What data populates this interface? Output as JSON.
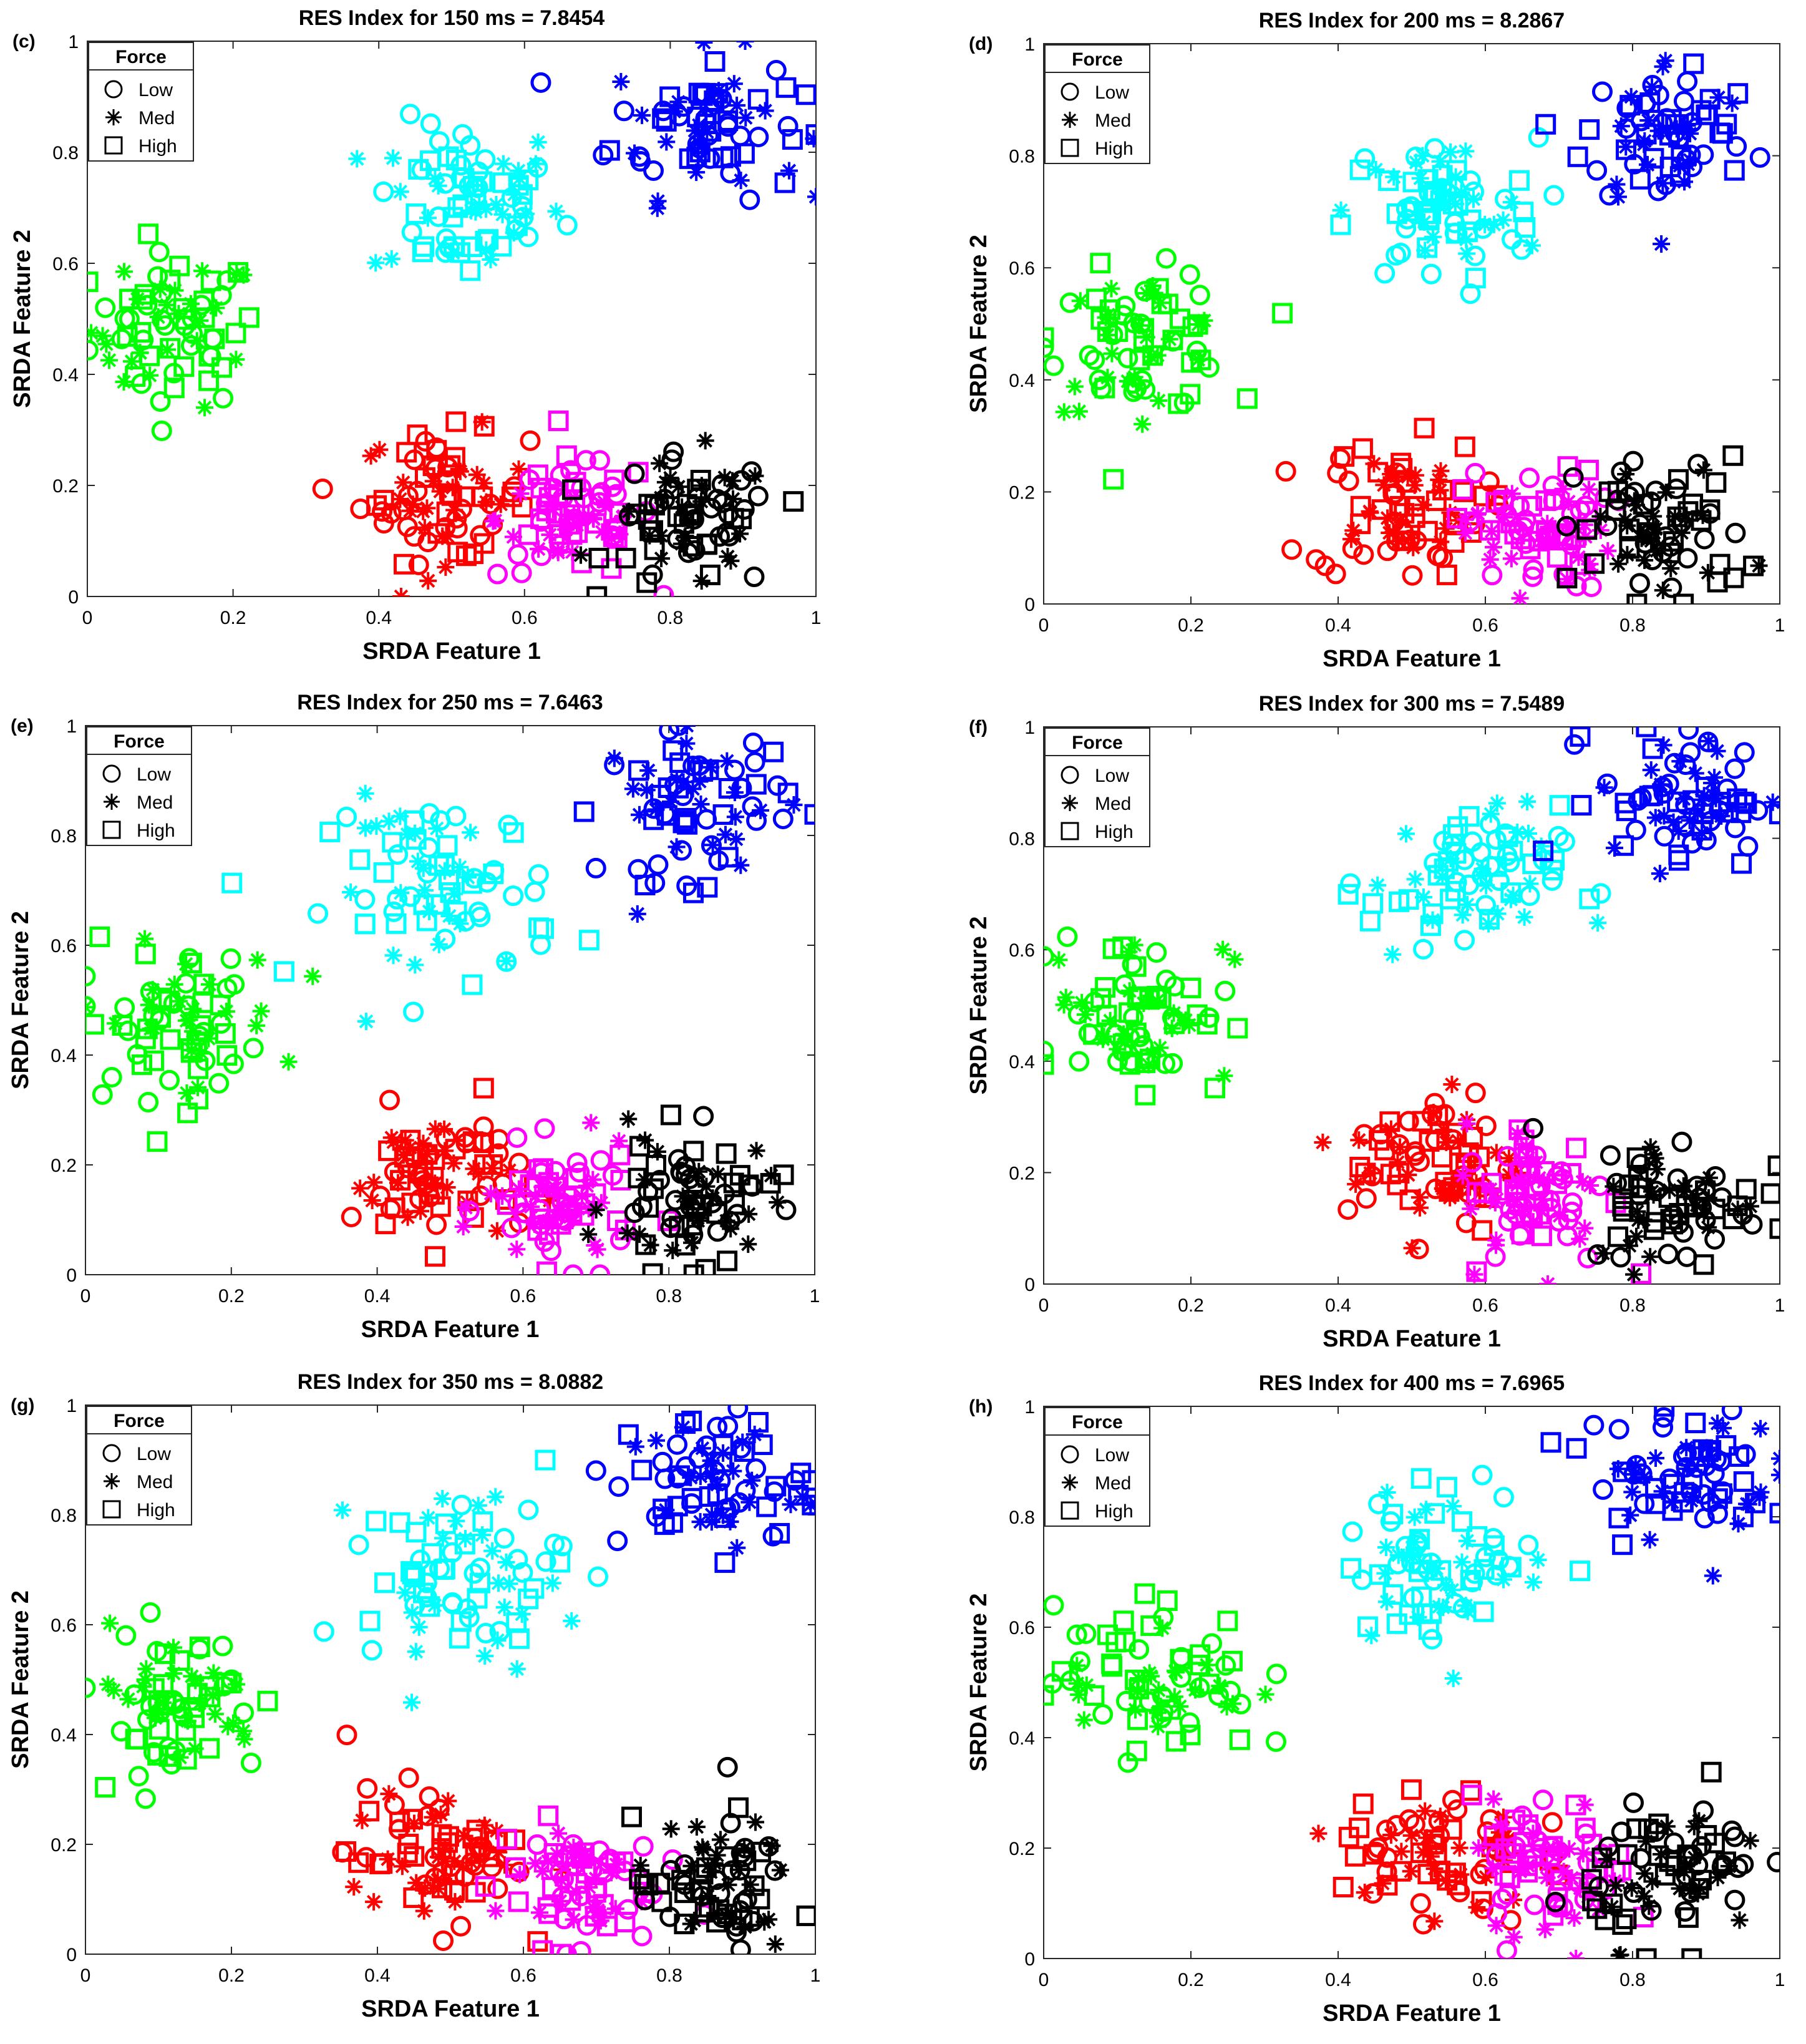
{
  "figure": {
    "legend_title": "Force",
    "legend_placement": "top-left"
  },
  "legend_entries": [
    {
      "label": "Low",
      "marker": "circle"
    },
    {
      "label": "Med",
      "marker": "asterisk"
    },
    {
      "label": "High",
      "marker": "square"
    }
  ],
  "colors": {
    "green": "#00ff00",
    "cyan": "#00ffff",
    "blue": "#0000ff",
    "red": "#ff0000",
    "magenta": "#ff00ff",
    "black": "#000000"
  },
  "chart_data": [
    {
      "type": "scatter",
      "panel": "(c)",
      "title": "RES Index for 150 ms =  7.8454",
      "xlabel": "SRDA Feature 1",
      "ylabel": "SRDA Feature 2",
      "xlim": [
        0,
        1
      ],
      "ylim": [
        0,
        1
      ],
      "xticks": [
        "0",
        "0.2",
        "0.4",
        "0.6",
        "0.8",
        "1"
      ],
      "yticks": [
        "0",
        "0.2",
        "0.4",
        "0.6",
        "0.8",
        "1"
      ],
      "clusters": [
        {
          "color": "green",
          "cx": 0.12,
          "cy": 0.48,
          "sx": 0.15,
          "sy": 0.18
        },
        {
          "color": "cyan",
          "cx": 0.52,
          "cy": 0.71,
          "sx": 0.17,
          "sy": 0.19
        },
        {
          "color": "blue",
          "cx": 0.85,
          "cy": 0.85,
          "sx": 0.17,
          "sy": 0.17
        },
        {
          "color": "red",
          "cx": 0.49,
          "cy": 0.18,
          "sx": 0.15,
          "sy": 0.15
        },
        {
          "color": "magenta",
          "cx": 0.67,
          "cy": 0.14,
          "sx": 0.14,
          "sy": 0.14
        },
        {
          "color": "black",
          "cx": 0.83,
          "cy": 0.13,
          "sx": 0.15,
          "sy": 0.16
        }
      ]
    },
    {
      "type": "scatter",
      "panel": "(d)",
      "title": "RES Index for 200 ms =  8.2867",
      "xlabel": "SRDA Feature 1",
      "ylabel": "SRDA Feature 2",
      "xlim": [
        0,
        1
      ],
      "ylim": [
        0,
        1
      ],
      "xticks": [
        "0",
        "0.2",
        "0.4",
        "0.6",
        "0.8",
        "1"
      ],
      "yticks": [
        "0",
        "0.2",
        "0.4",
        "0.6",
        "0.8",
        "1"
      ],
      "clusters": [
        {
          "color": "green",
          "cx": 0.13,
          "cy": 0.47,
          "sx": 0.16,
          "sy": 0.16
        },
        {
          "color": "cyan",
          "cx": 0.54,
          "cy": 0.7,
          "sx": 0.17,
          "sy": 0.17
        },
        {
          "color": "blue",
          "cx": 0.85,
          "cy": 0.84,
          "sx": 0.15,
          "sy": 0.18
        },
        {
          "color": "red",
          "cx": 0.48,
          "cy": 0.17,
          "sx": 0.15,
          "sy": 0.16
        },
        {
          "color": "magenta",
          "cx": 0.67,
          "cy": 0.13,
          "sx": 0.13,
          "sy": 0.14
        },
        {
          "color": "black",
          "cx": 0.84,
          "cy": 0.13,
          "sx": 0.15,
          "sy": 0.17
        }
      ]
    },
    {
      "type": "scatter",
      "panel": "(e)",
      "title": "RES Index for 250 ms =  7.6463",
      "xlabel": "SRDA Feature 1",
      "ylabel": "SRDA Feature 2",
      "xlim": [
        0,
        1
      ],
      "ylim": [
        0,
        1
      ],
      "xticks": [
        "0",
        "0.2",
        "0.4",
        "0.6",
        "0.8",
        "1"
      ],
      "yticks": [
        "0",
        "0.2",
        "0.4",
        "0.6",
        "0.8",
        "1"
      ],
      "clusters": [
        {
          "color": "green",
          "cx": 0.13,
          "cy": 0.46,
          "sx": 0.18,
          "sy": 0.18
        },
        {
          "color": "cyan",
          "cx": 0.49,
          "cy": 0.7,
          "sx": 0.2,
          "sy": 0.22
        },
        {
          "color": "blue",
          "cx": 0.84,
          "cy": 0.86,
          "sx": 0.17,
          "sy": 0.18
        },
        {
          "color": "red",
          "cx": 0.48,
          "cy": 0.18,
          "sx": 0.15,
          "sy": 0.16
        },
        {
          "color": "magenta",
          "cx": 0.65,
          "cy": 0.12,
          "sx": 0.13,
          "sy": 0.14
        },
        {
          "color": "black",
          "cx": 0.83,
          "cy": 0.13,
          "sx": 0.15,
          "sy": 0.16
        }
      ]
    },
    {
      "type": "scatter",
      "panel": "(f)",
      "title": "RES Index for 300 ms =  7.5489",
      "xlabel": "SRDA Feature 1",
      "ylabel": "SRDA Feature 2",
      "xlim": [
        0,
        1
      ],
      "ylim": [
        0,
        1
      ],
      "xticks": [
        "0",
        "0.2",
        "0.4",
        "0.6",
        "0.8",
        "1"
      ],
      "yticks": [
        "0",
        "0.2",
        "0.4",
        "0.6",
        "0.8",
        "1"
      ],
      "clusters": [
        {
          "color": "green",
          "cx": 0.13,
          "cy": 0.5,
          "sx": 0.16,
          "sy": 0.18
        },
        {
          "color": "cyan",
          "cx": 0.57,
          "cy": 0.72,
          "sx": 0.17,
          "sy": 0.18
        },
        {
          "color": "blue",
          "cx": 0.87,
          "cy": 0.87,
          "sx": 0.15,
          "sy": 0.16
        },
        {
          "color": "red",
          "cx": 0.53,
          "cy": 0.22,
          "sx": 0.15,
          "sy": 0.17
        },
        {
          "color": "magenta",
          "cx": 0.67,
          "cy": 0.16,
          "sx": 0.13,
          "sy": 0.17
        },
        {
          "color": "black",
          "cx": 0.86,
          "cy": 0.15,
          "sx": 0.15,
          "sy": 0.16
        }
      ]
    },
    {
      "type": "scatter",
      "panel": "(g)",
      "title": "RES Index for 350 ms =  8.0882",
      "xlabel": "SRDA Feature 1",
      "ylabel": "SRDA Feature 2",
      "xlim": [
        0,
        1
      ],
      "ylim": [
        0,
        1
      ],
      "xticks": [
        "0",
        "0.2",
        "0.4",
        "0.6",
        "0.8",
        "1"
      ],
      "yticks": [
        "0",
        "0.2",
        "0.4",
        "0.6",
        "0.8",
        "1"
      ],
      "clusters": [
        {
          "color": "green",
          "cx": 0.12,
          "cy": 0.46,
          "sx": 0.16,
          "sy": 0.17
        },
        {
          "color": "cyan",
          "cx": 0.52,
          "cy": 0.69,
          "sx": 0.18,
          "sy": 0.2
        },
        {
          "color": "blue",
          "cx": 0.86,
          "cy": 0.86,
          "sx": 0.17,
          "sy": 0.17
        },
        {
          "color": "red",
          "cx": 0.48,
          "cy": 0.18,
          "sx": 0.16,
          "sy": 0.16
        },
        {
          "color": "magenta",
          "cx": 0.67,
          "cy": 0.13,
          "sx": 0.14,
          "sy": 0.15
        },
        {
          "color": "black",
          "cx": 0.86,
          "cy": 0.12,
          "sx": 0.14,
          "sy": 0.16
        }
      ]
    },
    {
      "type": "scatter",
      "panel": "(h)",
      "title": "RES Index for 400 ms =  7.6965",
      "xlabel": "SRDA Feature 1",
      "ylabel": "SRDA Feature 2",
      "xlim": [
        0,
        1
      ],
      "ylim": [
        0,
        1
      ],
      "xticks": [
        "0",
        "0.2",
        "0.4",
        "0.6",
        "0.8",
        "1"
      ],
      "yticks": [
        "0",
        "0.2",
        "0.4",
        "0.6",
        "0.8",
        "1"
      ],
      "clusters": [
        {
          "color": "green",
          "cx": 0.15,
          "cy": 0.51,
          "sx": 0.18,
          "sy": 0.18
        },
        {
          "color": "cyan",
          "cx": 0.55,
          "cy": 0.72,
          "sx": 0.18,
          "sy": 0.18
        },
        {
          "color": "blue",
          "cx": 0.87,
          "cy": 0.88,
          "sx": 0.16,
          "sy": 0.16
        },
        {
          "color": "red",
          "cx": 0.53,
          "cy": 0.19,
          "sx": 0.17,
          "sy": 0.17
        },
        {
          "color": "magenta",
          "cx": 0.69,
          "cy": 0.16,
          "sx": 0.14,
          "sy": 0.16
        },
        {
          "color": "black",
          "cx": 0.86,
          "cy": 0.16,
          "sx": 0.15,
          "sy": 0.17
        }
      ]
    }
  ]
}
